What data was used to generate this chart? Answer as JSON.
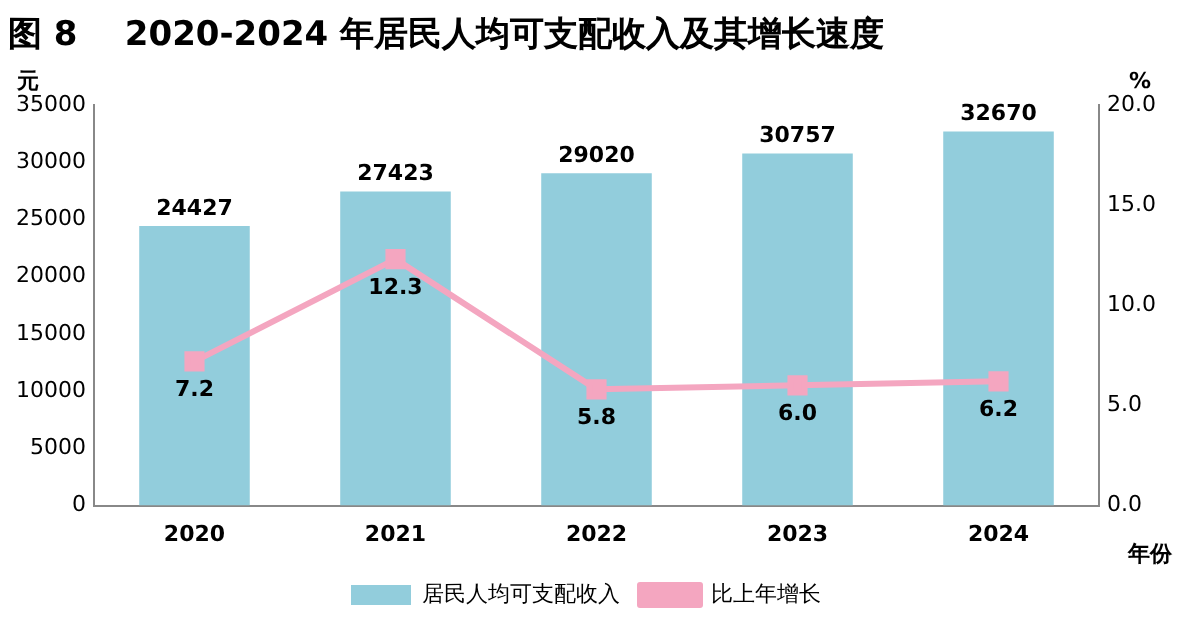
{
  "chart_data": {
    "type": "bar",
    "title": "图 8    2020-2024 年居民人均可支配收入及其增长速度",
    "ylabel": "元",
    "y2label": "%",
    "xlabel": "年份",
    "categories": [
      "2020",
      "2021",
      "2022",
      "2023",
      "2024"
    ],
    "series": [
      {
        "name": "居民人均可支配收入",
        "color": "#92cddc",
        "values": [
          24427,
          27423,
          29020,
          30757,
          32670
        ],
        "value_labels": [
          "24427",
          "27423",
          "29020",
          "30757",
          "32670"
        ]
      },
      {
        "name": "比上年增长",
        "type": "line",
        "axis": "y2",
        "color": "#f4a6c0",
        "values": [
          7.2,
          12.3,
          5.8,
          6.0,
          6.2
        ],
        "value_labels": [
          "7.2",
          "12.3",
          "5.8",
          "6.0",
          "6.2"
        ]
      }
    ],
    "ylim": [
      0,
      35000
    ],
    "yticks": [
      0,
      5000,
      10000,
      15000,
      20000,
      25000,
      30000,
      35000
    ],
    "y2lim": [
      0,
      20
    ],
    "y2ticks": [
      {
        "value": 0,
        "label": "0.0"
      },
      {
        "value": 5,
        "label": "5.0"
      },
      {
        "value": 10,
        "label": "10.0"
      },
      {
        "value": 15,
        "label": "15.0"
      },
      {
        "value": 20,
        "label": "20.0"
      }
    ],
    "legend": "bottom",
    "grid": false,
    "marker": "square",
    "line_style": "solid"
  }
}
